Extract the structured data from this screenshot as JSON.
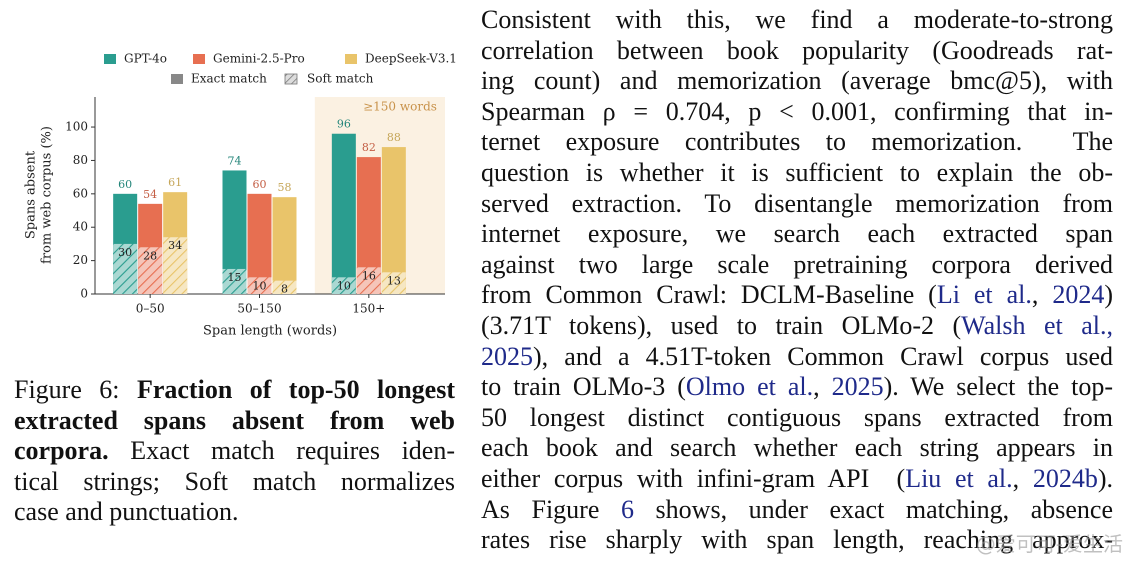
{
  "chart_data": {
    "type": "bar",
    "categories": [
      "0–50",
      "50–150",
      "150+"
    ],
    "series": [
      {
        "name": "GPT-4o",
        "color": "#2a9d8f",
        "values": [
          60,
          74,
          96
        ],
        "soft_values": [
          30,
          15,
          10
        ]
      },
      {
        "name": "Gemini-2.5-Pro",
        "color": "#e76f51",
        "values": [
          54,
          60,
          82
        ],
        "soft_values": [
          28,
          10,
          16
        ]
      },
      {
        "name": "DeepSeek-V3.1",
        "color": "#e9c46a",
        "values": [
          61,
          58,
          88
        ],
        "soft_values": [
          34,
          8,
          13
        ]
      }
    ],
    "match_legend": [
      "Exact match",
      "Soft match"
    ],
    "ylabel": [
      "Spans absent",
      "from web corpus (%)"
    ],
    "xlabel": "Span length (words)",
    "annotation": "≥150 words",
    "ylim": [
      0,
      118
    ],
    "yticks": [
      0,
      20,
      40,
      60,
      80,
      100
    ]
  },
  "caption": {
    "lines": [
      [
        {
          "text": "Figure 6: "
        },
        {
          "text": "Fraction of top-50 longest",
          "bold": true
        }
      ],
      [
        {
          "text": "extracted spans absent from web",
          "bold": true
        }
      ],
      [
        {
          "text": "corpora.",
          "bold": true
        },
        {
          "text": " Exact match requires iden-"
        }
      ],
      [
        {
          "text": "tical strings; Soft match normalizes"
        }
      ],
      [
        {
          "text": "case and punctuation."
        }
      ]
    ]
  },
  "body": {
    "lines": [
      [
        "Consistent with this, we find a moderate-to-strong"
      ],
      [
        "correlation between book popularity (Goodreads rat-"
      ],
      [
        "ing count) and memorization (average bmc@5), with"
      ],
      [
        "Spearman ρ = 0.704, p < 0.001, confirming that in-"
      ],
      [
        "ternet exposure contributes to memorization.  The"
      ],
      [
        "question is whether it is sufficient to explain the ob-"
      ],
      [
        "served extraction. To disentangle memorization from"
      ],
      [
        "internet exposure, we search each extracted span"
      ],
      [
        "against two large scale pretraining corpora derived"
      ],
      [
        "from Common Crawl: DCLM-Baseline (",
        {
          "text": "Li et al.",
          "link": true
        },
        ", ",
        {
          "text": "2024",
          "link": true
        },
        ")"
      ],
      [
        "(3.71T tokens), used to train OLMo-2 (",
        {
          "text": "Walsh et al.,",
          "link": true
        }
      ],
      [
        {
          "text": "2025",
          "link": true
        },
        "), and a 4.51T-token Common Crawl corpus used"
      ],
      [
        "to train OLMo-3 (",
        {
          "text": "Olmo et al.",
          "link": true
        },
        ", ",
        {
          "text": "2025",
          "link": true
        },
        "). We select the top-"
      ],
      [
        "50 longest distinct contiguous spans extracted from"
      ],
      [
        "each book and search whether each string appears in"
      ],
      [
        "either corpus with infini-gram API  (",
        {
          "text": "Liu et al.",
          "link": true
        },
        ", ",
        {
          "text": "2024b",
          "link": true
        },
        ")."
      ],
      [
        "As Figure ",
        {
          "text": "6",
          "link": true
        },
        " shows, under exact matching, absence"
      ],
      [
        "rates rise sharply with span length, reaching approx-"
      ]
    ]
  },
  "watermark": "@爱可可-爱生活"
}
